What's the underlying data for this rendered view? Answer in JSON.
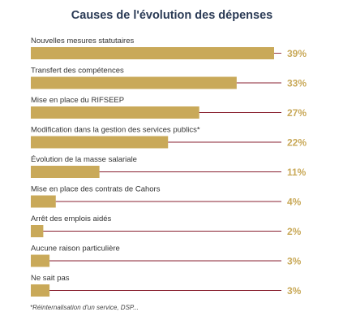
{
  "chart_data": {
    "type": "bar",
    "orientation": "horizontal",
    "title": "Causes de l'évolution des dépenses",
    "categories": [
      "Nouvelles mesures statutaires",
      "Transfert des compétences",
      "Mise en place du RIFSEEP",
      "Modification dans la gestion des services publics*",
      "Évolution de la masse salariale",
      "Mise en place des contrats de Cahors",
      "Arrêt des emplois aidés",
      "Aucune raison particulière",
      "Ne sait pas"
    ],
    "values": [
      39,
      33,
      27,
      22,
      11,
      4,
      2,
      3,
      3
    ],
    "value_labels": [
      "39%",
      "33%",
      "27%",
      "22%",
      "11%",
      "4%",
      "2%",
      "3%",
      "3%"
    ],
    "xlim": [
      0,
      39
    ],
    "grid": false,
    "legend": "none",
    "footnote": "*Réinternalisation d'un service, DSP..."
  },
  "colors": {
    "bar": "#c9a959",
    "leader_line": "#8a2230",
    "value_label": "#c9a959",
    "title": "#2a3a55",
    "category_label": "#333333"
  }
}
